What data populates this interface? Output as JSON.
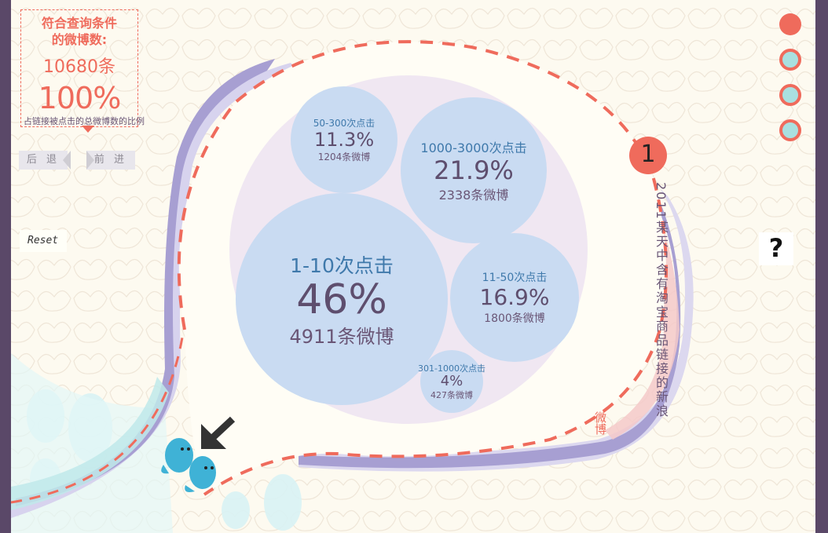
{
  "panel": {
    "title_line1": "符合查询条件",
    "title_line2": "的微博数:",
    "count": "10680条",
    "percent": "100%",
    "caption": "占链接被点击的总微博数的比例"
  },
  "nav": {
    "back_label": "后 退",
    "forward_label": "前 进"
  },
  "reset_label": "Reset",
  "help_label": "?",
  "index_label": "1",
  "title_vertical": "2011某天中含有淘宝商品链接的新浪",
  "title_vertical_2": "微博",
  "bubbles": [
    {
      "label": "1-10次点击",
      "percent": "46%",
      "count": "4911条微博"
    },
    {
      "label": "1000-3000次点击",
      "percent": "21.9%",
      "count": "2338条微博"
    },
    {
      "label": "11-50次点击",
      "percent": "16.9%",
      "count": "1800条微博"
    },
    {
      "label": "50-300次点击",
      "percent": "11.3%",
      "count": "1204条微博"
    },
    {
      "label": "301-1000次点击",
      "percent": "4%",
      "count": "427条微博"
    }
  ],
  "colors": {
    "accent": "#ef6b5c",
    "bubble": "#c9dbf2",
    "text": "#6a5676",
    "label": "#3f79ab",
    "dot": "#a9e0e0"
  },
  "icons": [
    "arrow-down-left-icon",
    "fish-mascot-icon",
    "ghost-mascot-icon"
  ]
}
